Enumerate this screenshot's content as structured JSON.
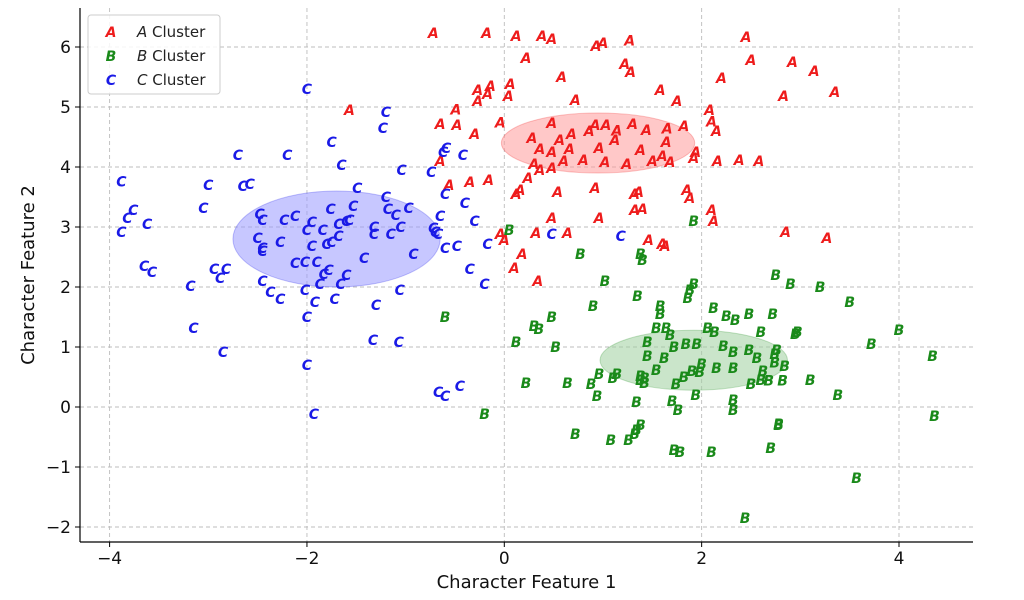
{
  "chart_data": {
    "type": "scatter",
    "xlabel": "Character Feature 1",
    "ylabel": "Character Feature 2",
    "xlim": [
      -4.3,
      4.75
    ],
    "ylim": [
      -2.25,
      6.65
    ],
    "xticks": [
      -4,
      -2,
      0,
      2,
      4
    ],
    "yticks": [
      -2,
      -1,
      0,
      1,
      2,
      3,
      4,
      5,
      6
    ],
    "tick_labels_x": [
      "−4",
      "−2",
      "0",
      "2",
      "4"
    ],
    "tick_labels_y": [
      "−2",
      "−1",
      "0",
      "1",
      "2",
      "3",
      "4",
      "5",
      "6"
    ],
    "grid": true,
    "legend_position": "top-left",
    "series": [
      {
        "name": "A Cluster",
        "legend_italic": "A",
        "legend_rest": " Cluster",
        "marker": "A",
        "color": "#ee1c1c",
        "ellipse": {
          "cx": 0.95,
          "cy": 4.4,
          "rx": 0.98,
          "ry": 0.5,
          "fill": "#ff9a9a"
        },
        "points": [
          [
            -0.72,
            6.23
          ],
          [
            -0.18,
            6.23
          ],
          [
            0.12,
            6.18
          ],
          [
            0.38,
            6.18
          ],
          [
            0.48,
            6.13
          ],
          [
            0.93,
            6.02
          ],
          [
            1.0,
            6.07
          ],
          [
            1.27,
            6.11
          ],
          [
            2.45,
            6.17
          ],
          [
            0.22,
            5.82
          ],
          [
            1.22,
            5.72
          ],
          [
            1.28,
            5.58
          ],
          [
            2.5,
            5.78
          ],
          [
            2.92,
            5.75
          ],
          [
            3.14,
            5.6
          ],
          [
            0.58,
            5.5
          ],
          [
            2.2,
            5.48
          ],
          [
            3.35,
            5.25
          ],
          [
            0.06,
            5.38
          ],
          [
            -0.14,
            5.35
          ],
          [
            -0.27,
            5.28
          ],
          [
            -0.17,
            5.22
          ],
          [
            0.04,
            5.18
          ],
          [
            -0.27,
            5.1
          ],
          [
            1.58,
            5.28
          ],
          [
            1.75,
            5.1
          ],
          [
            2.83,
            5.18
          ],
          [
            0.72,
            5.12
          ],
          [
            -0.49,
            4.96
          ],
          [
            -1.57,
            4.95
          ],
          [
            2.08,
            4.95
          ],
          [
            -0.65,
            4.72
          ],
          [
            -0.48,
            4.7
          ],
          [
            -0.04,
            4.74
          ],
          [
            0.48,
            4.73
          ],
          [
            0.68,
            4.55
          ],
          [
            0.86,
            4.6
          ],
          [
            0.92,
            4.7
          ],
          [
            1.03,
            4.7
          ],
          [
            1.14,
            4.61
          ],
          [
            1.3,
            4.72
          ],
          [
            1.44,
            4.62
          ],
          [
            1.65,
            4.64
          ],
          [
            1.82,
            4.68
          ],
          [
            2.15,
            4.6
          ],
          [
            2.1,
            4.76
          ],
          [
            -0.3,
            4.55
          ],
          [
            0.28,
            4.48
          ],
          [
            0.56,
            4.45
          ],
          [
            0.66,
            4.3
          ],
          [
            1.12,
            4.45
          ],
          [
            1.38,
            4.28
          ],
          [
            1.64,
            4.42
          ],
          [
            -0.65,
            4.1
          ],
          [
            0.36,
            4.3
          ],
          [
            0.48,
            4.25
          ],
          [
            0.6,
            4.1
          ],
          [
            0.96,
            4.32
          ],
          [
            0.3,
            4.05
          ],
          [
            0.8,
            4.12
          ],
          [
            1.02,
            4.08
          ],
          [
            1.24,
            4.05
          ],
          [
            1.5,
            4.1
          ],
          [
            1.6,
            4.18
          ],
          [
            1.68,
            4.08
          ],
          [
            1.92,
            4.15
          ],
          [
            1.94,
            4.25
          ],
          [
            2.16,
            4.1
          ],
          [
            2.38,
            4.12
          ],
          [
            2.58,
            4.1
          ],
          [
            0.24,
            3.82
          ],
          [
            -0.35,
            3.75
          ],
          [
            -0.16,
            3.78
          ],
          [
            0.36,
            3.95
          ],
          [
            0.48,
            3.98
          ],
          [
            0.16,
            3.62
          ],
          [
            0.54,
            3.58
          ],
          [
            0.92,
            3.65
          ],
          [
            1.32,
            3.55
          ],
          [
            1.36,
            3.58
          ],
          [
            1.85,
            3.62
          ],
          [
            1.88,
            3.48
          ],
          [
            -0.56,
            3.7
          ],
          [
            0.12,
            3.55
          ],
          [
            1.32,
            3.28
          ],
          [
            1.4,
            3.3
          ],
          [
            2.1,
            3.28
          ],
          [
            0.48,
            3.15
          ],
          [
            0.96,
            3.15
          ],
          [
            2.12,
            3.1
          ],
          [
            -0.04,
            2.88
          ],
          [
            0.0,
            2.78
          ],
          [
            0.32,
            2.9
          ],
          [
            0.64,
            2.9
          ],
          [
            1.46,
            2.78
          ],
          [
            1.6,
            2.72
          ],
          [
            1.63,
            2.68
          ],
          [
            0.18,
            2.55
          ],
          [
            0.1,
            2.32
          ],
          [
            0.34,
            2.1
          ],
          [
            2.85,
            2.92
          ],
          [
            3.27,
            2.82
          ]
        ]
      },
      {
        "name": "B Cluster",
        "legend_italic": "B",
        "legend_rest": " Cluster",
        "marker": "B",
        "color": "#1a8a1a",
        "ellipse": {
          "cx": 1.92,
          "cy": 0.78,
          "rx": 0.95,
          "ry": 0.5,
          "fill": "#9ecf9e"
        },
        "points": [
          [
            1.92,
            3.1
          ],
          [
            0.05,
            2.95
          ],
          [
            0.77,
            2.55
          ],
          [
            1.38,
            2.55
          ],
          [
            1.4,
            2.45
          ],
          [
            1.02,
            2.1
          ],
          [
            1.92,
            2.05
          ],
          [
            1.88,
            1.95
          ],
          [
            1.86,
            1.82
          ],
          [
            2.75,
            2.2
          ],
          [
            2.9,
            2.05
          ],
          [
            3.2,
            2.0
          ],
          [
            1.35,
            1.85
          ],
          [
            0.9,
            1.68
          ],
          [
            1.58,
            1.68
          ],
          [
            2.12,
            1.65
          ],
          [
            2.48,
            1.55
          ],
          [
            2.72,
            1.55
          ],
          [
            3.5,
            1.75
          ],
          [
            0.48,
            1.5
          ],
          [
            1.58,
            1.55
          ],
          [
            2.25,
            1.52
          ],
          [
            2.34,
            1.45
          ],
          [
            -0.6,
            1.5
          ],
          [
            0.3,
            1.35
          ],
          [
            0.35,
            1.3
          ],
          [
            1.54,
            1.32
          ],
          [
            1.64,
            1.32
          ],
          [
            1.68,
            1.2
          ],
          [
            2.06,
            1.32
          ],
          [
            2.13,
            1.25
          ],
          [
            2.6,
            1.25
          ],
          [
            2.95,
            1.22
          ],
          [
            2.97,
            1.25
          ],
          [
            4.0,
            1.28
          ],
          [
            0.12,
            1.08
          ],
          [
            0.52,
            1.0
          ],
          [
            1.45,
            1.08
          ],
          [
            1.72,
            1.0
          ],
          [
            1.84,
            1.05
          ],
          [
            1.95,
            1.05
          ],
          [
            2.22,
            1.02
          ],
          [
            2.32,
            0.92
          ],
          [
            2.48,
            0.95
          ],
          [
            2.56,
            0.82
          ],
          [
            2.76,
            0.95
          ],
          [
            2.74,
            0.88
          ],
          [
            3.72,
            1.05
          ],
          [
            1.45,
            0.85
          ],
          [
            1.62,
            0.82
          ],
          [
            2.0,
            0.72
          ],
          [
            2.15,
            0.65
          ],
          [
            2.62,
            0.6
          ],
          [
            2.74,
            0.74
          ],
          [
            2.84,
            0.68
          ],
          [
            4.34,
            0.85
          ],
          [
            0.96,
            0.55
          ],
          [
            1.14,
            0.55
          ],
          [
            1.38,
            0.52
          ],
          [
            1.42,
            0.48
          ],
          [
            1.54,
            0.62
          ],
          [
            1.82,
            0.5
          ],
          [
            1.9,
            0.6
          ],
          [
            1.98,
            0.58
          ],
          [
            2.32,
            0.65
          ],
          [
            2.6,
            0.45
          ],
          [
            2.68,
            0.44
          ],
          [
            2.82,
            0.44
          ],
          [
            3.1,
            0.45
          ],
          [
            0.22,
            0.4
          ],
          [
            0.64,
            0.4
          ],
          [
            0.88,
            0.38
          ],
          [
            1.1,
            0.48
          ],
          [
            1.38,
            0.45
          ],
          [
            1.42,
            0.4
          ],
          [
            1.74,
            0.38
          ],
          [
            2.5,
            0.38
          ],
          [
            0.94,
            0.18
          ],
          [
            1.34,
            0.08
          ],
          [
            1.7,
            0.1
          ],
          [
            1.94,
            0.2
          ],
          [
            2.32,
            0.12
          ],
          [
            3.38,
            0.2
          ],
          [
            -0.2,
            -0.12
          ],
          [
            1.76,
            -0.05
          ],
          [
            2.32,
            -0.05
          ],
          [
            2.78,
            -0.28
          ],
          [
            2.78,
            -0.3
          ],
          [
            4.36,
            -0.15
          ],
          [
            0.72,
            -0.45
          ],
          [
            1.08,
            -0.55
          ],
          [
            1.26,
            -0.55
          ],
          [
            1.32,
            -0.45
          ],
          [
            1.34,
            -0.38
          ],
          [
            1.38,
            -0.3
          ],
          [
            1.72,
            -0.72
          ],
          [
            1.78,
            -0.75
          ],
          [
            2.1,
            -0.75
          ],
          [
            2.7,
            -0.68
          ],
          [
            3.57,
            -1.18
          ],
          [
            2.44,
            -1.85
          ]
        ]
      },
      {
        "name": "C Cluster",
        "legend_italic": "C",
        "legend_rest": " Cluster",
        "marker": "C",
        "color": "#1a1ae6",
        "ellipse": {
          "cx": -1.7,
          "cy": 2.8,
          "rx": 1.05,
          "ry": 0.8,
          "fill": "#9999ff"
        },
        "points": [
          [
            -2.0,
            5.3
          ],
          [
            -1.2,
            4.92
          ],
          [
            -1.23,
            4.65
          ],
          [
            -1.75,
            4.42
          ],
          [
            -0.62,
            4.25
          ],
          [
            -0.59,
            4.32
          ],
          [
            -0.42,
            4.2
          ],
          [
            -2.7,
            4.2
          ],
          [
            -2.2,
            4.2
          ],
          [
            -1.65,
            4.03
          ],
          [
            -1.04,
            3.95
          ],
          [
            -0.74,
            3.92
          ],
          [
            -3.88,
            3.76
          ],
          [
            -3.0,
            3.7
          ],
          [
            -2.65,
            3.68
          ],
          [
            -2.58,
            3.72
          ],
          [
            -1.49,
            3.65
          ],
          [
            -0.6,
            3.55
          ],
          [
            -0.4,
            3.4
          ],
          [
            -3.76,
            3.28
          ],
          [
            -3.82,
            3.15
          ],
          [
            -3.62,
            3.05
          ],
          [
            -3.05,
            3.32
          ],
          [
            -2.48,
            3.22
          ],
          [
            -2.45,
            3.12
          ],
          [
            -2.23,
            3.12
          ],
          [
            -2.12,
            3.18
          ],
          [
            -1.95,
            3.08
          ],
          [
            -1.76,
            3.3
          ],
          [
            -1.68,
            3.05
          ],
          [
            -1.6,
            3.1
          ],
          [
            -1.57,
            3.12
          ],
          [
            -1.53,
            3.35
          ],
          [
            -1.2,
            3.5
          ],
          [
            -1.18,
            3.3
          ],
          [
            -1.1,
            3.2
          ],
          [
            -0.97,
            3.32
          ],
          [
            -0.65,
            3.18
          ],
          [
            -0.3,
            3.1
          ],
          [
            -3.88,
            2.92
          ],
          [
            -2.5,
            2.82
          ],
          [
            -2.45,
            2.65
          ],
          [
            -2.27,
            2.75
          ],
          [
            -2.0,
            2.95
          ],
          [
            -1.95,
            2.68
          ],
          [
            -1.84,
            2.95
          ],
          [
            -1.8,
            2.72
          ],
          [
            -1.75,
            2.75
          ],
          [
            -1.68,
            2.85
          ],
          [
            -1.32,
            3.0
          ],
          [
            -1.32,
            2.88
          ],
          [
            -1.15,
            2.88
          ],
          [
            -1.05,
            3.0
          ],
          [
            -0.72,
            2.98
          ],
          [
            -0.7,
            2.92
          ],
          [
            -0.67,
            2.88
          ],
          [
            -0.6,
            2.65
          ],
          [
            -0.48,
            2.68
          ],
          [
            -0.17,
            2.72
          ],
          [
            0.48,
            2.88
          ],
          [
            1.18,
            2.85
          ],
          [
            -2.45,
            2.6
          ],
          [
            -2.12,
            2.4
          ],
          [
            -2.02,
            2.42
          ],
          [
            -1.9,
            2.42
          ],
          [
            -1.83,
            2.22
          ],
          [
            -1.78,
            2.28
          ],
          [
            -1.6,
            2.2
          ],
          [
            -1.42,
            2.48
          ],
          [
            -0.92,
            2.55
          ],
          [
            -3.65,
            2.35
          ],
          [
            -3.57,
            2.25
          ],
          [
            -2.94,
            2.3
          ],
          [
            -2.82,
            2.3
          ],
          [
            -2.88,
            2.15
          ],
          [
            -2.45,
            2.1
          ],
          [
            -2.37,
            1.92
          ],
          [
            -1.87,
            2.05
          ],
          [
            -0.35,
            2.3
          ],
          [
            -0.2,
            2.05
          ],
          [
            -3.18,
            2.02
          ],
          [
            -2.27,
            1.8
          ],
          [
            -2.02,
            1.95
          ],
          [
            -1.92,
            1.75
          ],
          [
            -1.72,
            1.8
          ],
          [
            -1.66,
            2.05
          ],
          [
            -1.3,
            1.7
          ],
          [
            -1.06,
            1.95
          ],
          [
            -2.0,
            1.5
          ],
          [
            -3.15,
            1.32
          ],
          [
            -1.33,
            1.12
          ],
          [
            -1.07,
            1.08
          ],
          [
            -2.85,
            0.92
          ],
          [
            -2.0,
            0.7
          ],
          [
            -0.67,
            0.25
          ],
          [
            -0.6,
            0.18
          ],
          [
            -0.45,
            0.35
          ],
          [
            -1.93,
            -0.12
          ]
        ]
      }
    ]
  }
}
